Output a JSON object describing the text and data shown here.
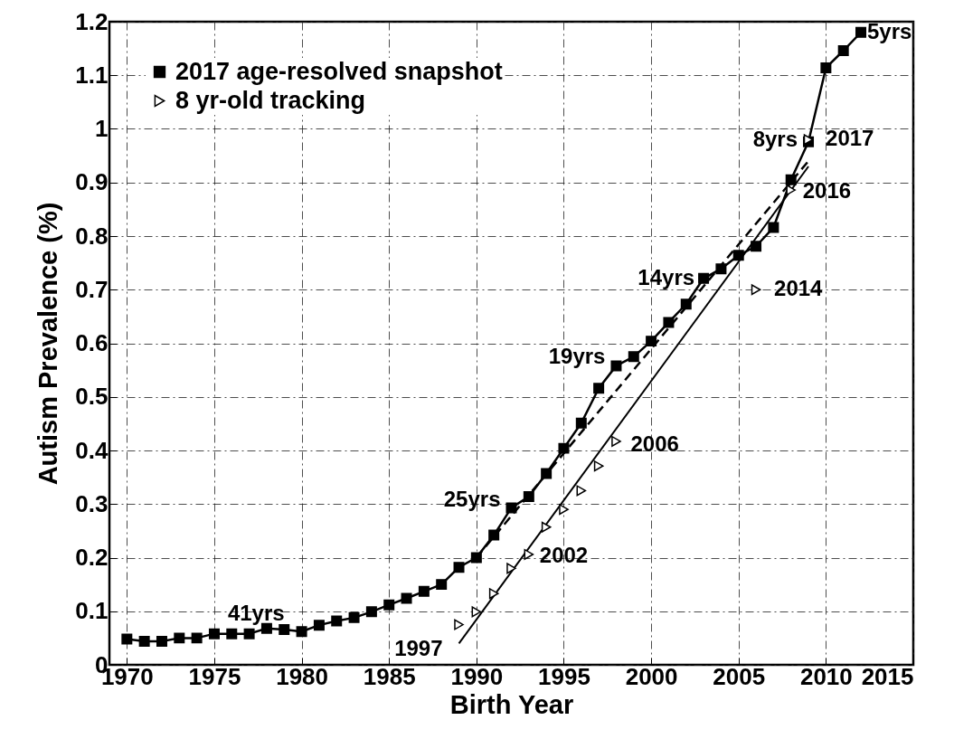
{
  "chart_data": {
    "type": "line",
    "xlabel": "Birth Year",
    "ylabel": "Autism Prevalence (%)",
    "xlim": [
      1969,
      2015
    ],
    "xticks": [
      1970,
      1975,
      1980,
      1985,
      1990,
      1995,
      2000,
      2005,
      2010,
      2015
    ],
    "ylim": [
      0,
      1.2
    ],
    "yticks": [
      0,
      0.1,
      0.2,
      0.3,
      0.4,
      0.5,
      0.6,
      0.7,
      0.8,
      0.9,
      1,
      1.1,
      1.2
    ],
    "grid": true,
    "legend": "top left",
    "series": [
      {
        "name": "2017 age-resolved snapshot",
        "marker": "square",
        "color": "#000000",
        "x": [
          1970,
          1971,
          1972,
          1973,
          1974,
          1975,
          1976,
          1977,
          1978,
          1979,
          1980,
          1981,
          1982,
          1983,
          1984,
          1985,
          1986,
          1987,
          1988,
          1989,
          1990,
          1991,
          1992,
          1993,
          1994,
          1995,
          1996,
          1997,
          1998,
          1999,
          2000,
          2001,
          2002,
          2003,
          2004,
          2005,
          2006,
          2007,
          2008,
          2009,
          2010,
          2011,
          2012
        ],
        "values": [
          0.048,
          0.044,
          0.044,
          0.05,
          0.05,
          0.058,
          0.058,
          0.058,
          0.068,
          0.066,
          0.062,
          0.074,
          0.082,
          0.088,
          0.099,
          0.112,
          0.124,
          0.137,
          0.15,
          0.182,
          0.2,
          0.242,
          0.293,
          0.314,
          0.357,
          0.404,
          0.451,
          0.516,
          0.558,
          0.575,
          0.604,
          0.639,
          0.673,
          0.721,
          0.739,
          0.764,
          0.781,
          0.816,
          0.905,
          0.976,
          1.114,
          1.146,
          1.18
        ]
      },
      {
        "name": "8 yr-old tracking",
        "type": "scatter",
        "marker": "triangle",
        "color": "#000000",
        "x": [
          1989,
          1990,
          1991,
          1992,
          1993,
          1994,
          1995,
          1996,
          1997,
          1998,
          2006,
          2008,
          2009
        ],
        "values": [
          0.075,
          0.099,
          0.133,
          0.18,
          0.206,
          0.257,
          0.29,
          0.325,
          0.371,
          0.417,
          0.7,
          0.886,
          0.98
        ]
      },
      {
        "color": "#000000",
        "line_style": "solid",
        "x": [
          1989,
          2009
        ],
        "values": [
          0.04,
          0.93
        ]
      },
      {
        "color": "#000000",
        "line_style": "dashed",
        "x": [
          1990,
          2009
        ],
        "values": [
          0.2,
          0.94
        ]
      }
    ],
    "annotations": [
      {
        "text": "41yrs",
        "x": 1976,
        "y": 0.058
      },
      {
        "text": "25yrs",
        "x": 1992,
        "y": 0.293
      },
      {
        "text": "19yrs",
        "x": 1998,
        "y": 0.558
      },
      {
        "text": "14yrs",
        "x": 2003,
        "y": 0.721
      },
      {
        "text": "8yrs",
        "x": 2009,
        "y": 0.976
      },
      {
        "text": "5yrs",
        "x": 2012,
        "y": 1.18
      },
      {
        "text": "1997",
        "x": 1989,
        "y": 0.075
      },
      {
        "text": "2002",
        "x": 1993,
        "y": 0.206
      },
      {
        "text": "2006",
        "x": 1998,
        "y": 0.417
      },
      {
        "text": "2014",
        "x": 2006,
        "y": 0.7
      },
      {
        "text": "2016",
        "x": 2008,
        "y": 0.886
      },
      {
        "text": "2017",
        "x": 2009,
        "y": 0.98
      }
    ]
  }
}
